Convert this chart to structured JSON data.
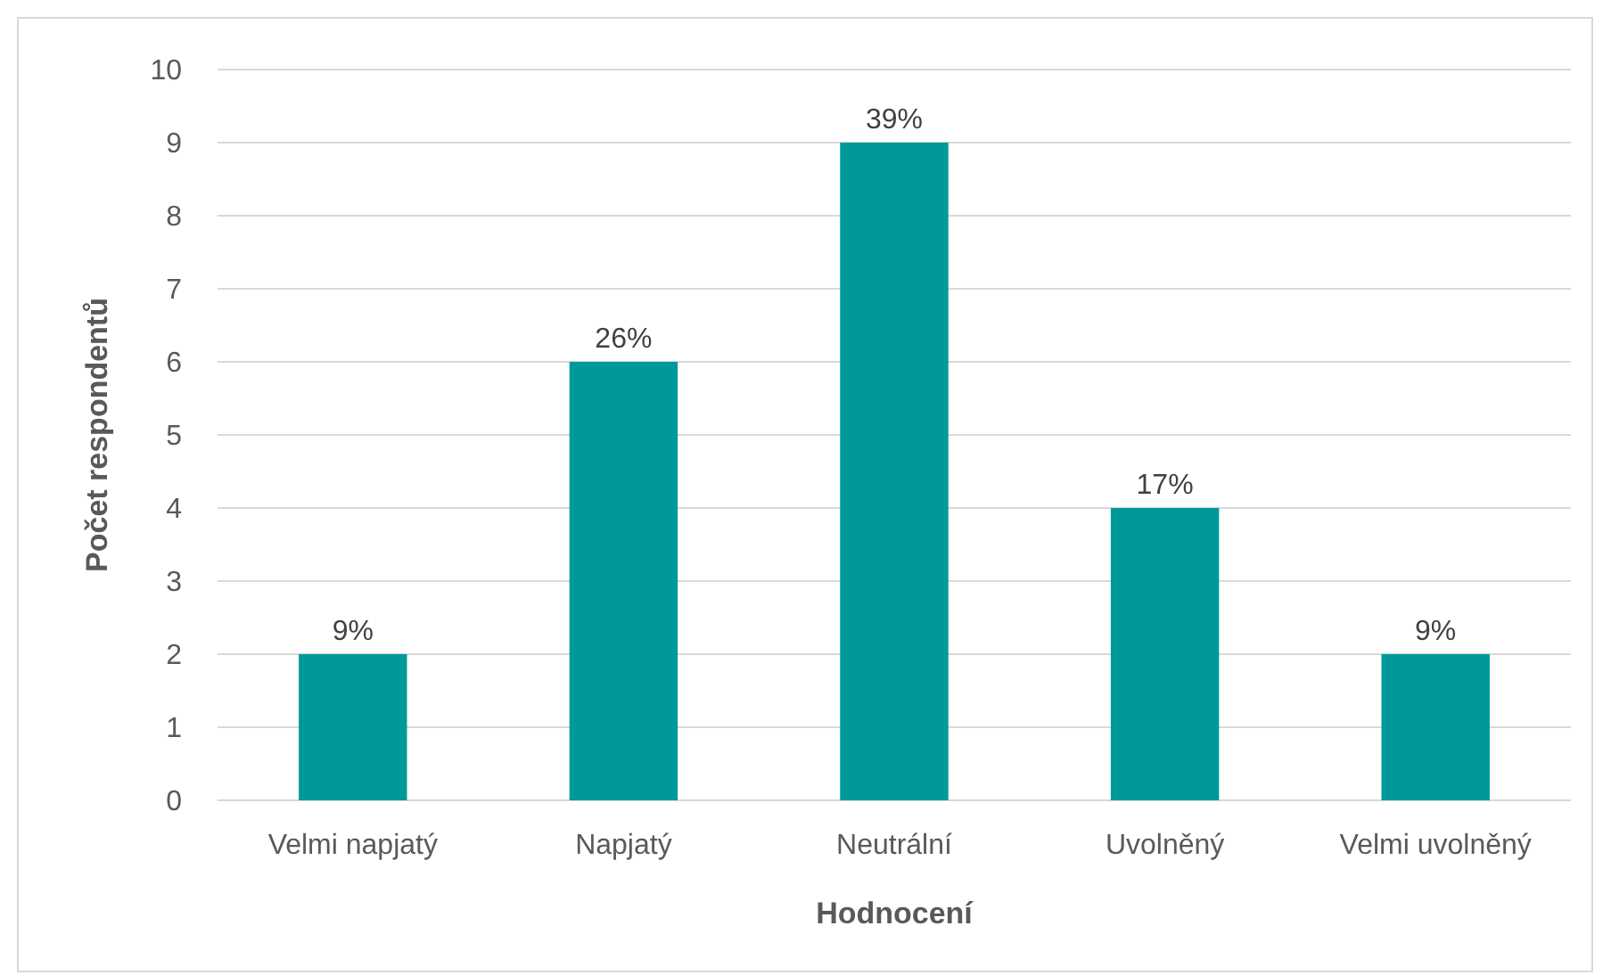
{
  "chart_data": {
    "type": "bar",
    "xlabel": "Hodnocení",
    "ylabel": "Počet respondentů",
    "categories": [
      "Velmi napjatý",
      "Napjatý",
      "Neutrální",
      "Uvolněný",
      "Velmi uvolněný"
    ],
    "values": [
      2,
      6,
      9,
      4,
      2
    ],
    "annotations": [
      {
        "text": "9%",
        "x": "Velmi napjatý",
        "y": 2
      },
      {
        "text": "26%",
        "x": "Napjatý",
        "y": 6
      },
      {
        "text": "39%",
        "x": "Neutrální",
        "y": 9
      },
      {
        "text": "17%",
        "x": "Uvolněný",
        "y": 4
      },
      {
        "text": "9%",
        "x": "Velmi uvolněný",
        "y": 2
      }
    ],
    "color": "#009999",
    "ylim": [
      0,
      10
    ],
    "yticks": [
      0,
      1,
      2,
      3,
      4,
      5,
      6,
      7,
      8,
      9,
      10
    ],
    "grid": "y"
  }
}
